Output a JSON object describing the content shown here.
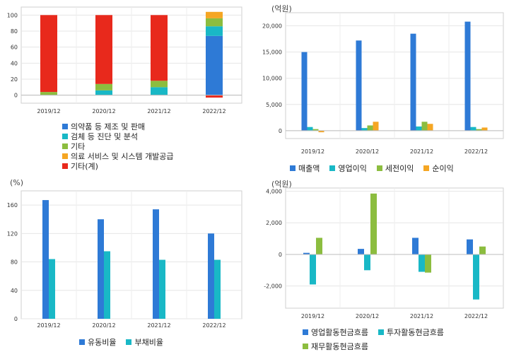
{
  "chart_data": [
    {
      "type": "bar",
      "stacked": true,
      "unit_label": "",
      "categories": [
        "2019/12",
        "2020/12",
        "2021/12",
        "2022/12"
      ],
      "ylim": [
        -10,
        110
      ],
      "yticks": [
        0,
        20,
        40,
        60,
        80,
        100
      ],
      "grid": true,
      "legend_position": "bottom",
      "series": [
        {
          "name": "의약품 등 제조 및 판매",
          "color": "#2e7ad6",
          "values": [
            0,
            0,
            0,
            74
          ]
        },
        {
          "name": "검체 등 진단 및 분석",
          "color": "#19b8c6",
          "values": [
            0,
            6,
            10,
            12
          ]
        },
        {
          "name": "기타",
          "color": "#8cbd3f",
          "values": [
            4,
            8,
            8,
            10
          ]
        },
        {
          "name": "의료 서비스 및 시스템 개발공급",
          "color": "#f5a623",
          "values": [
            0,
            0,
            0,
            8
          ]
        },
        {
          "name": "기타(계)",
          "color": "#e8291c",
          "values": [
            96,
            86,
            82,
            -3
          ]
        }
      ]
    },
    {
      "type": "bar",
      "unit_label": "(억원)",
      "categories": [
        "2019/12",
        "2020/12",
        "2021/12",
        "2022/12"
      ],
      "ylim": [
        -1500,
        22500
      ],
      "yticks": [
        0,
        5000,
        10000,
        15000,
        20000
      ],
      "ytick_labels": [
        "0",
        "5,000",
        "10,000",
        "15,000",
        "20,000"
      ],
      "grid": true,
      "legend_position": "bottom",
      "series": [
        {
          "name": "매출액",
          "color": "#2e7ad6",
          "values": [
            15000,
            17200,
            18500,
            20800
          ]
        },
        {
          "name": "영업이익",
          "color": "#19b8c6",
          "values": [
            700,
            500,
            800,
            700
          ]
        },
        {
          "name": "세전이익",
          "color": "#8cbd3f",
          "values": [
            300,
            1000,
            1700,
            300
          ]
        },
        {
          "name": "순이익",
          "color": "#f5a623",
          "values": [
            -300,
            1700,
            1300,
            600
          ]
        }
      ]
    },
    {
      "type": "bar",
      "unit_label": "(%)",
      "categories": [
        "2019/12",
        "2020/12",
        "2021/12",
        "2022/12"
      ],
      "ylim": [
        0,
        180
      ],
      "yticks": [
        0,
        40,
        80,
        120,
        160
      ],
      "grid": true,
      "legend_position": "bottom",
      "series": [
        {
          "name": "유동비율",
          "color": "#2e7ad6",
          "values": [
            167,
            140,
            154,
            120
          ]
        },
        {
          "name": "부채비율",
          "color": "#19b8c6",
          "values": [
            84,
            95,
            83,
            83
          ]
        }
      ]
    },
    {
      "type": "bar",
      "unit_label": "(억원)",
      "categories": [
        "2019/12",
        "2020/12",
        "2021/12",
        "2022/12"
      ],
      "ylim": [
        -3400,
        4200
      ],
      "yticks": [
        -2000,
        0,
        2000,
        4000
      ],
      "ytick_labels": [
        "-2,000",
        "0",
        "2,000",
        "4,000"
      ],
      "grid": true,
      "legend_position": "bottom",
      "series": [
        {
          "name": "영업활동현금흐름",
          "color": "#2e7ad6",
          "values": [
            100,
            350,
            1050,
            950
          ]
        },
        {
          "name": "투자활동현금흐름",
          "color": "#19b8c6",
          "values": [
            -1900,
            -1000,
            -1100,
            -2850
          ]
        },
        {
          "name": "재무활동현금흐름",
          "color": "#8cbd3f",
          "values": [
            1050,
            3850,
            -1150,
            500
          ]
        }
      ]
    }
  ]
}
